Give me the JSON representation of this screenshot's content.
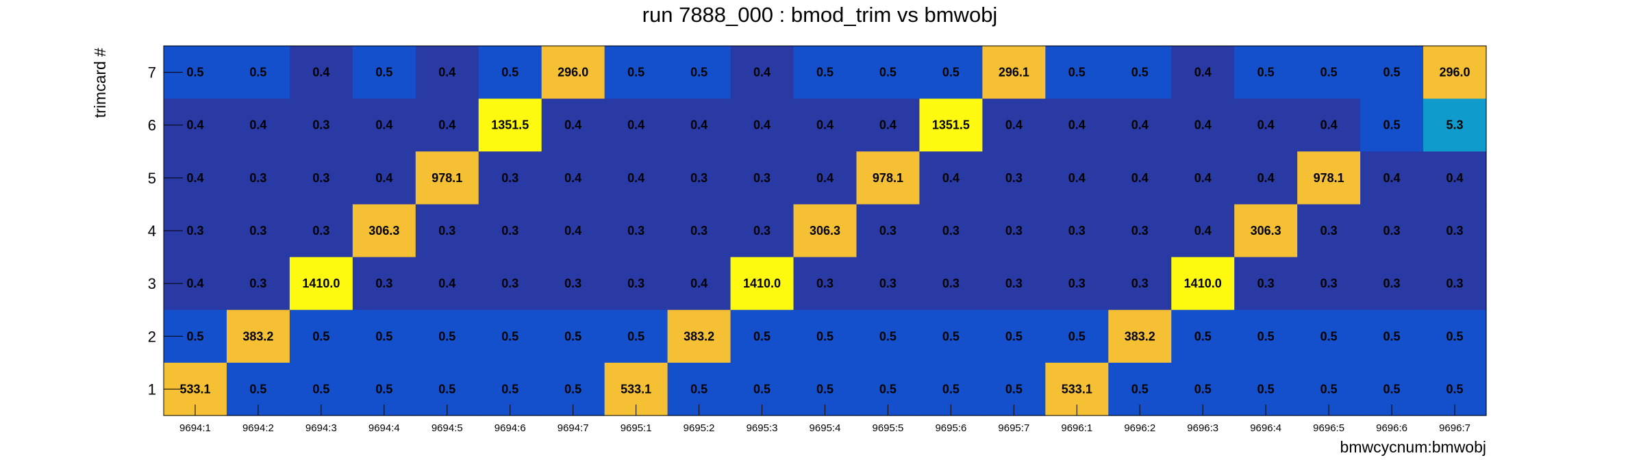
{
  "chart_data": {
    "type": "heatmap",
    "title": "run 7888_000 : bmod_trim vs bmwobj",
    "xlabel": "bmwcycnum:bmwobj",
    "ylabel": "trimcard #",
    "x_categories": [
      "9694:1",
      "9694:2",
      "9694:3",
      "9694:4",
      "9694:5",
      "9694:6",
      "9694:7",
      "9695:1",
      "9695:2",
      "9695:3",
      "9695:4",
      "9695:5",
      "9695:6",
      "9695:7",
      "9696:1",
      "9696:2",
      "9696:3",
      "9696:4",
      "9696:5",
      "9696:6",
      "9696:7"
    ],
    "y_categories": [
      "1",
      "2",
      "3",
      "4",
      "5",
      "6",
      "7"
    ],
    "rows": [
      {
        "y": "7",
        "values": [
          "0.5",
          "0.5",
          "0.4",
          "0.5",
          "0.4",
          "0.5",
          "296.0",
          "0.5",
          "0.5",
          "0.4",
          "0.5",
          "0.5",
          "0.5",
          "296.1",
          "0.5",
          "0.5",
          "0.4",
          "0.5",
          "0.5",
          "0.5",
          "296.0"
        ]
      },
      {
        "y": "6",
        "values": [
          "0.4",
          "0.4",
          "0.3",
          "0.4",
          "0.4",
          "1351.5",
          "0.4",
          "0.4",
          "0.4",
          "0.4",
          "0.4",
          "0.4",
          "1351.5",
          "0.4",
          "0.4",
          "0.4",
          "0.4",
          "0.4",
          "0.4",
          "0.5",
          "5.3"
        ]
      },
      {
        "y": "5",
        "values": [
          "0.4",
          "0.3",
          "0.3",
          "0.4",
          "978.1",
          "0.3",
          "0.4",
          "0.4",
          "0.3",
          "0.3",
          "0.4",
          "978.1",
          "0.4",
          "0.3",
          "0.4",
          "0.4",
          "0.4",
          "0.4",
          "978.1",
          "0.4",
          "0.4"
        ]
      },
      {
        "y": "4",
        "values": [
          "0.3",
          "0.3",
          "0.3",
          "306.3",
          "0.3",
          "0.3",
          "0.4",
          "0.3",
          "0.3",
          "0.3",
          "306.3",
          "0.3",
          "0.3",
          "0.3",
          "0.3",
          "0.3",
          "0.4",
          "306.3",
          "0.3",
          "0.3",
          "0.3"
        ]
      },
      {
        "y": "3",
        "values": [
          "0.4",
          "0.3",
          "1410.0",
          "0.3",
          "0.4",
          "0.3",
          "0.3",
          "0.3",
          "0.4",
          "1410.0",
          "0.3",
          "0.3",
          "0.3",
          "0.3",
          "0.3",
          "0.3",
          "1410.0",
          "0.3",
          "0.3",
          "0.3",
          "0.3"
        ]
      },
      {
        "y": "2",
        "values": [
          "0.5",
          "383.2",
          "0.5",
          "0.5",
          "0.5",
          "0.5",
          "0.5",
          "0.5",
          "383.2",
          "0.5",
          "0.5",
          "0.5",
          "0.5",
          "0.5",
          "0.5",
          "383.2",
          "0.5",
          "0.5",
          "0.5",
          "0.5",
          "0.5"
        ]
      },
      {
        "y": "1",
        "values": [
          "533.1",
          "0.5",
          "0.5",
          "0.5",
          "0.5",
          "0.5",
          "0.5",
          "533.1",
          "0.5",
          "0.5",
          "0.5",
          "0.5",
          "0.5",
          "0.5",
          "533.1",
          "0.5",
          "0.5",
          "0.5",
          "0.5",
          "0.5",
          "0.5"
        ]
      }
    ],
    "colors": {
      "dark_blue": "#2a3aa5",
      "blue": "#1550cc",
      "teal": "#0f9bcc",
      "orange": "#f5c034",
      "yellow": "#fdfa10"
    }
  }
}
